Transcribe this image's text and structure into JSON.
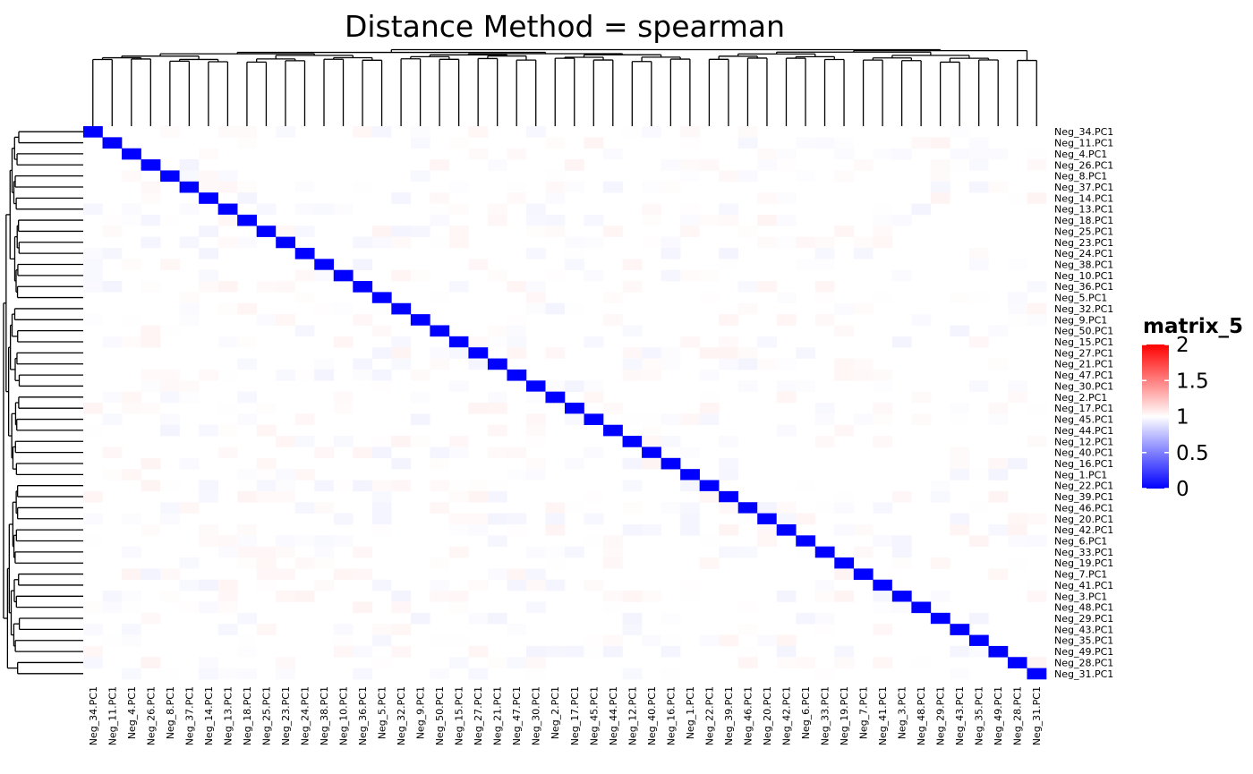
{
  "chart_data": {
    "type": "heatmap",
    "title": "Distance Method = spearman",
    "labels": [
      "Neg_34.PC1",
      "Neg_11.PC1",
      "Neg_4.PC1",
      "Neg_26.PC1",
      "Neg_8.PC1",
      "Neg_37.PC1",
      "Neg_14.PC1",
      "Neg_13.PC1",
      "Neg_18.PC1",
      "Neg_25.PC1",
      "Neg_23.PC1",
      "Neg_24.PC1",
      "Neg_38.PC1",
      "Neg_10.PC1",
      "Neg_36.PC1",
      "Neg_5.PC1",
      "Neg_32.PC1",
      "Neg_9.PC1",
      "Neg_50.PC1",
      "Neg_15.PC1",
      "Neg_27.PC1",
      "Neg_21.PC1",
      "Neg_47.PC1",
      "Neg_30.PC1",
      "Neg_2.PC1",
      "Neg_17.PC1",
      "Neg_45.PC1",
      "Neg_44.PC1",
      "Neg_12.PC1",
      "Neg_40.PC1",
      "Neg_16.PC1",
      "Neg_1.PC1",
      "Neg_22.PC1",
      "Neg_39.PC1",
      "Neg_46.PC1",
      "Neg_20.PC1",
      "Neg_42.PC1",
      "Neg_6.PC1",
      "Neg_33.PC1",
      "Neg_19.PC1",
      "Neg_7.PC1",
      "Neg_41.PC1",
      "Neg_3.PC1",
      "Neg_48.PC1",
      "Neg_29.PC1",
      "Neg_43.PC1",
      "Neg_35.PC1",
      "Neg_49.PC1",
      "Neg_28.PC1",
      "Neg_31.PC1"
    ],
    "diagonal_value": 0,
    "off_diagonal_value_approx": 1,
    "legend": {
      "title": "matrix_5",
      "ticks": [
        "0",
        "0.5",
        "1",
        "1.5",
        "2"
      ],
      "range": [
        0,
        2
      ],
      "colors": {
        "low": "#0000FF",
        "mid": "#FFFFFF",
        "high": "#FF0000"
      },
      "placement": "right"
    },
    "row_dendrogram": "left",
    "column_dendrogram": "top"
  }
}
